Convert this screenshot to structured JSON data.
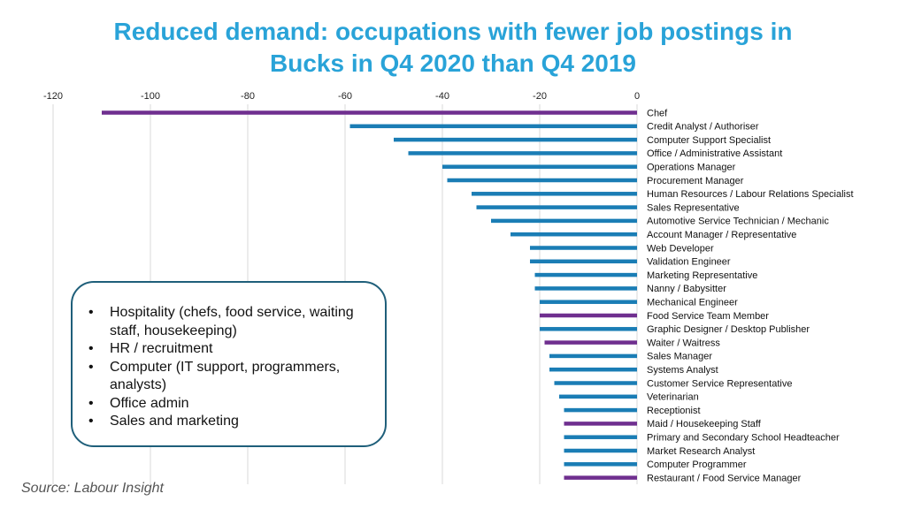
{
  "title_line1": "Reduced demand: occupations with fewer job postings in",
  "title_line2": "Bucks in Q4 2020 than Q4 2019",
  "callout": {
    "items": [
      "Hospitality (chefs, food service, waiting staff, housekeeping)",
      "HR / recruitment",
      "Computer (IT support, programmers, analysts)",
      "Office admin",
      "Sales and marketing"
    ]
  },
  "source": "Source: Labour Insight",
  "colors": {
    "title": "#29a3d8",
    "bar_default": "#1a7db5",
    "bar_highlight": "#6f2f8f",
    "grid": "#d9d9d9"
  },
  "chart_data": {
    "type": "bar",
    "orientation": "horizontal",
    "xlim": [
      -120,
      0
    ],
    "xticks": [
      -120,
      -100,
      -80,
      -60,
      -40,
      -20,
      0
    ],
    "x_axis_position": "top",
    "grid": true,
    "title": "Reduced demand: occupations with fewer job postings in Bucks in Q4 2020 than Q4 2019",
    "categories": [
      "Chef",
      "Credit Analyst / Authoriser",
      "Computer Support Specialist",
      "Office / Administrative Assistant",
      "Operations Manager",
      "Procurement Manager",
      "Human Resources / Labour Relations Specialist",
      "Sales Representative",
      "Automotive Service Technician / Mechanic",
      "Account Manager / Representative",
      "Web Developer",
      "Validation Engineer",
      "Marketing Representative",
      "Nanny / Babysitter",
      "Mechanical Engineer",
      "Food Service Team Member",
      "Graphic Designer / Desktop Publisher",
      "Waiter / Waitress",
      "Sales Manager",
      "Systems Analyst",
      "Customer Service Representative",
      "Veterinarian",
      "Receptionist",
      "Maid / Housekeeping Staff",
      "Primary and Secondary School Headteacher",
      "Market Research Analyst",
      "Computer Programmer",
      "Restaurant / Food Service Manager"
    ],
    "values": [
      -110,
      -59,
      -50,
      -47,
      -40,
      -39,
      -34,
      -33,
      -30,
      -26,
      -22,
      -22,
      -21,
      -21,
      -20,
      -20,
      -20,
      -19,
      -18,
      -18,
      -17,
      -16,
      -15,
      -15,
      -15,
      -15,
      -15,
      -15
    ],
    "highlighted": [
      "Chef",
      "Food Service Team Member",
      "Waiter / Waitress",
      "Maid / Housekeeping Staff",
      "Restaurant / Food Service Manager"
    ]
  }
}
